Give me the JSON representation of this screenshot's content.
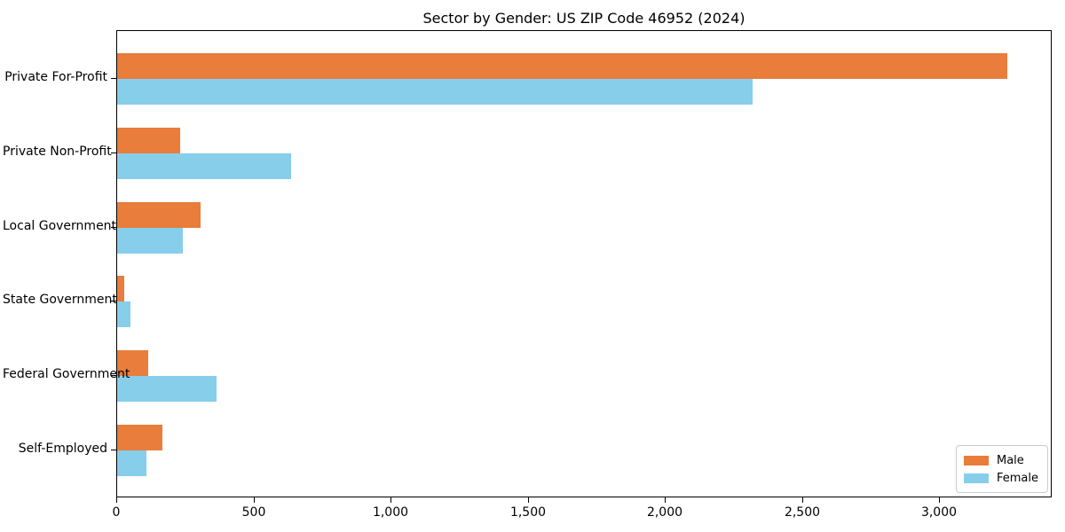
{
  "chart_data": {
    "type": "bar",
    "orientation": "horizontal",
    "title": "Sector by Gender: US ZIP Code 46952 (2024)",
    "categories": [
      "Private For-Profit",
      "Private Non-Profit",
      "Local Government",
      "State Government",
      "Federal Government",
      "Self-Employed"
    ],
    "series": [
      {
        "name": "Male",
        "color": "#E87D3C",
        "values": [
          3245,
          230,
          305,
          26,
          113,
          165
        ]
      },
      {
        "name": "Female",
        "color": "#87CEEB",
        "values": [
          2315,
          635,
          240,
          50,
          362,
          107
        ]
      }
    ],
    "xlabel": "",
    "ylabel": "",
    "xlim": [
      0,
      3410
    ],
    "x_ticks": [
      0,
      500,
      1000,
      1500,
      2000,
      2500,
      3000
    ],
    "x_tick_labels": [
      "0",
      "500",
      "1,000",
      "1,500",
      "2,000",
      "2,500",
      "3,000"
    ],
    "legend_position": "lower-right",
    "grid": false,
    "background": "#ffffff"
  }
}
